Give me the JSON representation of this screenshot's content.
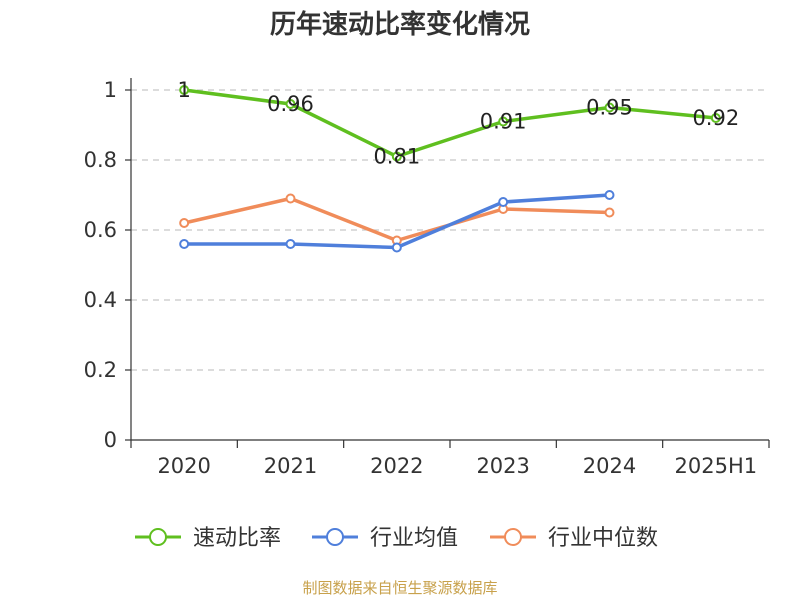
{
  "chart_data": {
    "type": "line",
    "title": "历年速动比率变化情况",
    "categories": [
      "2020",
      "2021",
      "2022",
      "2023",
      "2024",
      "2025H1"
    ],
    "ylim": [
      0,
      1
    ],
    "yticks": [
      "0",
      "0.2",
      "0.4",
      "0.6",
      "0.8",
      "1"
    ],
    "grid": true,
    "legend_position": "bottom",
    "series": [
      {
        "name": "速动比率",
        "color": "#5fbf1f",
        "values": [
          1,
          0.96,
          0.81,
          0.91,
          0.95,
          0.92
        ],
        "labels": [
          "1",
          "0.96",
          "0.81",
          "0.91",
          "0.95",
          "0.92"
        ]
      },
      {
        "name": "行业均值",
        "color": "#4f7fdb",
        "values": [
          0.56,
          0.56,
          0.55,
          0.68,
          0.7,
          null
        ]
      },
      {
        "name": "行业中位数",
        "color": "#f08c5a",
        "values": [
          0.62,
          0.69,
          0.57,
          0.66,
          0.65,
          null
        ]
      }
    ]
  },
  "source_text": "制图数据来自恒生聚源数据库"
}
